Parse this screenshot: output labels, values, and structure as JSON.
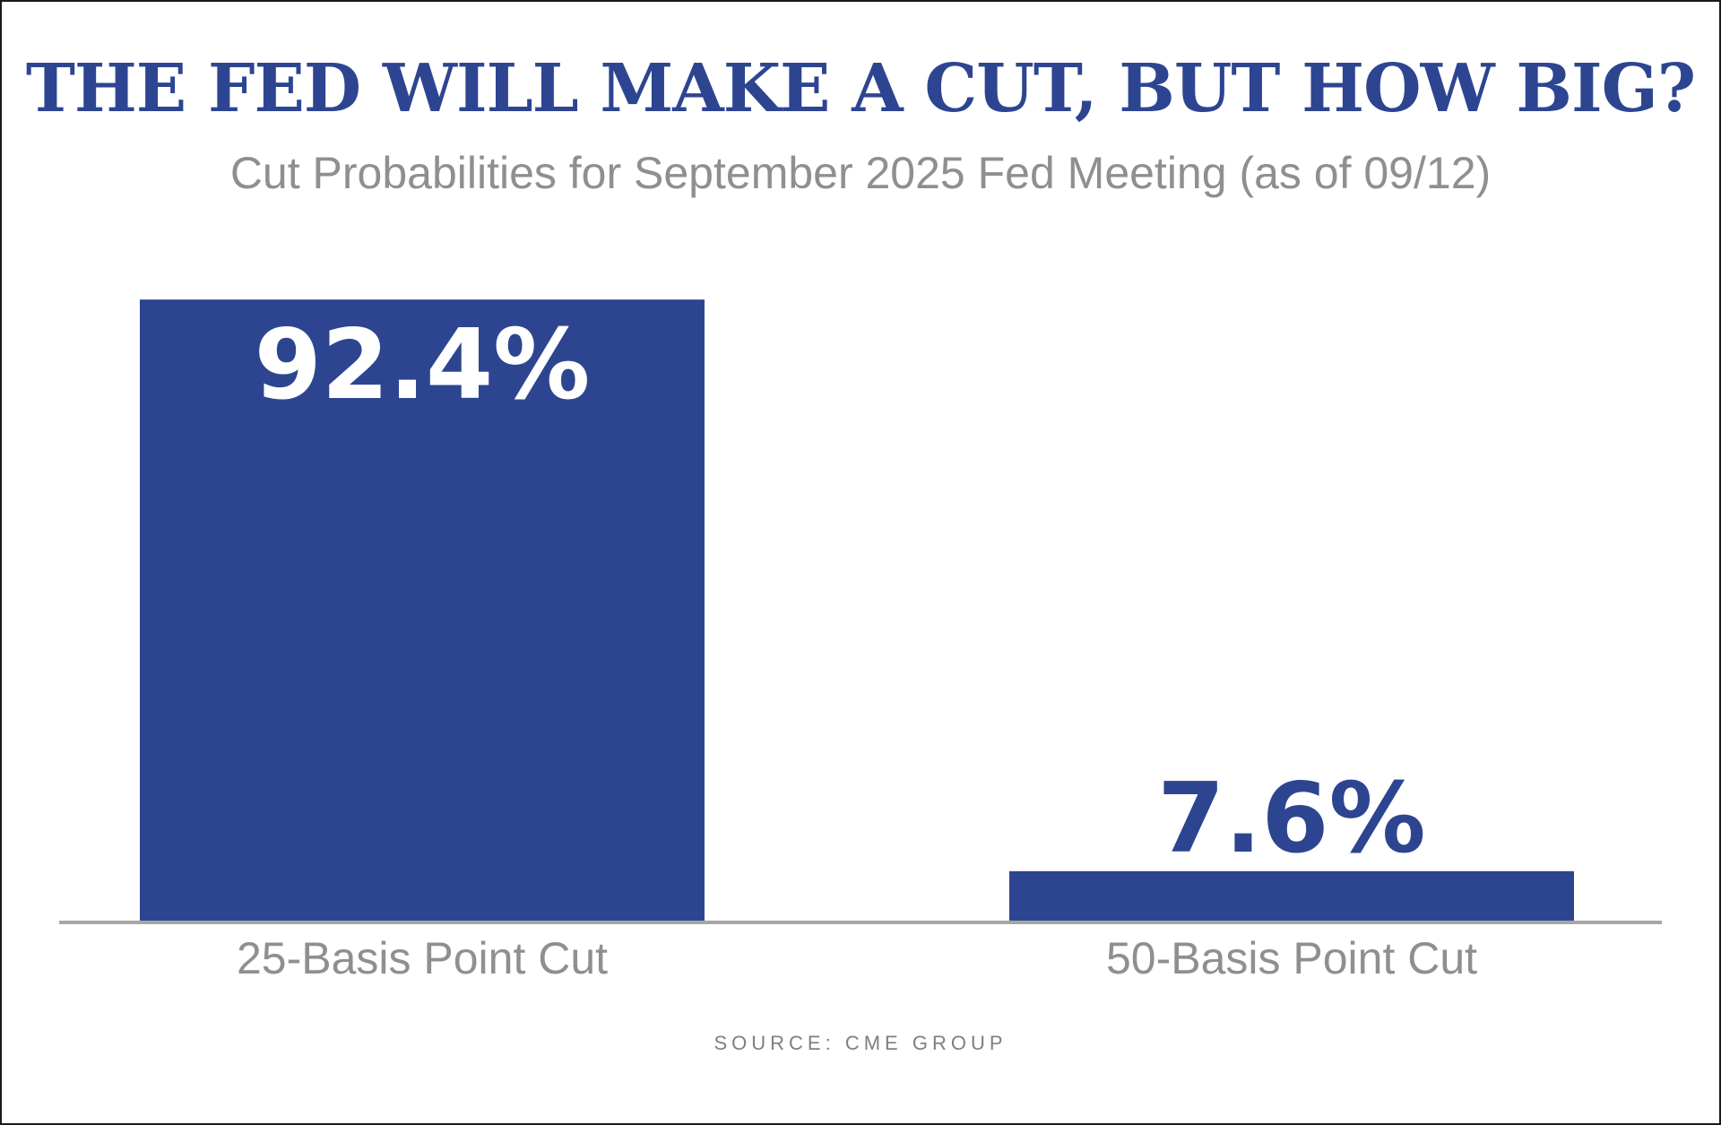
{
  "header": {
    "title": "THE FED WILL MAKE A CUT,  BUT HOW BIG?",
    "subtitle": "Cut Probabilities for September 2025 Fed Meeting (as of 09/12)"
  },
  "footer": {
    "source": "SOURCE: CME GROUP"
  },
  "colors": {
    "accent": "#2d4591",
    "subtitle": "#8f8f8f",
    "axis": "#a6a6a6",
    "source": "#7f7f7f"
  },
  "chart_data": {
    "type": "bar",
    "title": "THE FED WILL MAKE A CUT,  BUT HOW BIG?",
    "subtitle": "Cut Probabilities for September 2025 Fed Meeting (as of 09/12)",
    "categories": [
      "25-Basis Point Cut",
      "50-Basis Point Cut"
    ],
    "values": [
      92.4,
      7.6
    ],
    "value_labels": [
      "92.4%",
      "7.6%"
    ],
    "unit": "%",
    "ylim": [
      0,
      100
    ],
    "grid": false,
    "legend": "none",
    "xlabel": "",
    "ylabel": ""
  }
}
